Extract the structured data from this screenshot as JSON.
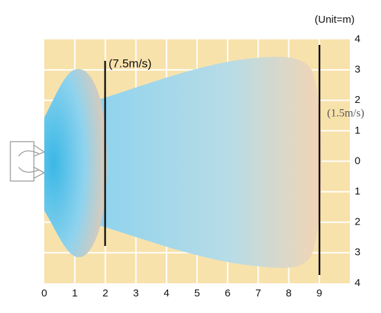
{
  "unit_note": "(Unit=m)",
  "x_labels": [
    "0",
    "1",
    "2",
    "3",
    "4",
    "5",
    "6",
    "7",
    "8",
    "9"
  ],
  "y_labels": [
    "4",
    "3",
    "2",
    "1",
    "0",
    "1",
    "2",
    "3",
    "4"
  ],
  "annotations": {
    "near": "(7.5m/s)",
    "far": "(1.5m/s)"
  }
}
